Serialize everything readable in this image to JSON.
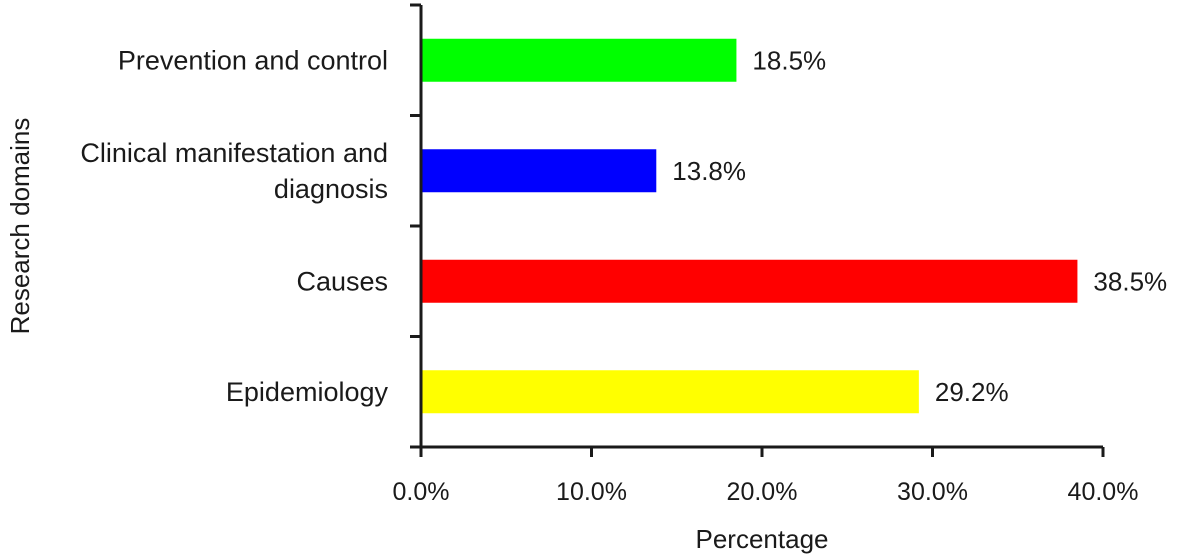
{
  "chart_data": {
    "type": "bar",
    "orientation": "horizontal",
    "categories": [
      "Prevention and control",
      "Clinical manifestation and diagnosis",
      "Causes",
      "Epidemiology"
    ],
    "values": [
      18.5,
      13.8,
      38.5,
      29.2
    ],
    "data_labels": [
      "18.5%",
      "13.8%",
      "38.5%",
      "29.2%"
    ],
    "colors": [
      "#00ff00",
      "#0000ff",
      "#ff0000",
      "#ffff00"
    ],
    "xlabel": "Percentage",
    "ylabel": "Research domains",
    "xlim": [
      0,
      40
    ],
    "xticks": [
      0,
      10,
      20,
      30,
      40
    ],
    "xtick_labels": [
      "0.0%",
      "10.0%",
      "20.0%",
      "30.0%",
      "40.0%"
    ],
    "grid": false,
    "legend": "none"
  }
}
